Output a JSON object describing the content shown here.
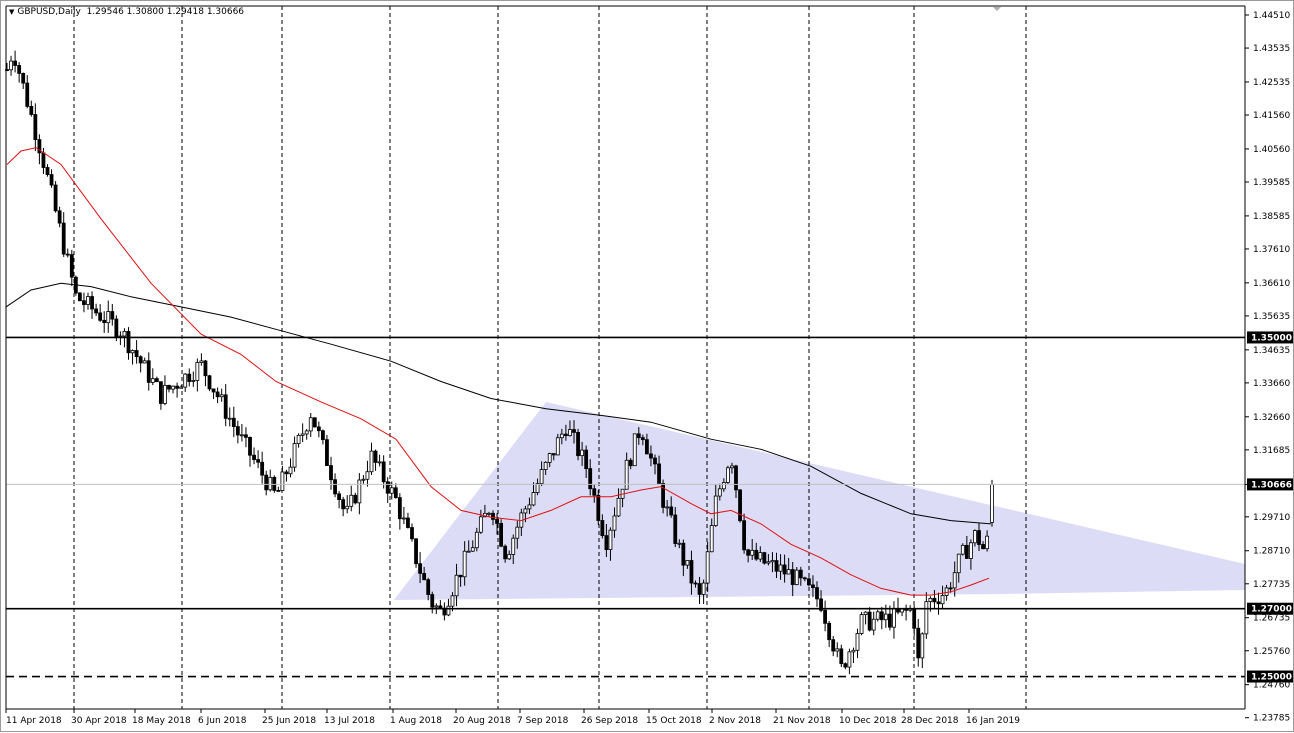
{
  "header": {
    "symbol": "GBPUSD,Daily",
    "ohlc": "1.29546 1.30800 1.29418 1.30666"
  },
  "colors": {
    "background": "#ffffff",
    "candle": "#000000",
    "ma_fast": "#e01010",
    "ma_slow": "#000000",
    "triangle_fill": "#dcdcf6",
    "price_marker_bg": "#000000",
    "price_marker_text": "#ffffff"
  },
  "chart_data": {
    "type": "candlestick",
    "symbol": "GBPUSD",
    "timeframe": "Daily",
    "y_axis_ticks": [
      "1.44510",
      "1.43535",
      "1.42535",
      "1.41560",
      "1.40560",
      "1.39585",
      "1.38585",
      "1.37610",
      "1.36610",
      "1.35635",
      "1.34635",
      "1.33660",
      "1.32660",
      "1.31685",
      "1.30666",
      "1.29710",
      "1.28710",
      "1.27735",
      "1.26735",
      "1.25760",
      "1.24760",
      "1.23785"
    ],
    "x_axis_labels": [
      "11 Apr 2018",
      "30 Apr 2018",
      "18 May 2018",
      "6 Jun 2018",
      "25 Jun 2018",
      "13 Jul 2018",
      "1 Aug 2018",
      "20 Aug 2018",
      "7 Sep 2018",
      "26 Sep 2018",
      "15 Oct 2018",
      "2 Nov 2018",
      "21 Nov 2018",
      "10 Dec 2018",
      "28 Dec 2018",
      "16 Jan 2019"
    ],
    "ylim": [
      1.2365,
      1.4465
    ],
    "horizontal_levels": [
      {
        "value": 1.35,
        "label": "1.35000",
        "style": "solid"
      },
      {
        "value": 1.27,
        "label": "1.27000",
        "style": "solid"
      },
      {
        "value": 1.25,
        "label": "1.25000",
        "style": "dashed"
      }
    ],
    "current_price": {
      "value": 1.30666,
      "label": "1.30666"
    },
    "last_candle": {
      "open": 1.29546,
      "high": 1.308,
      "low": 1.29418,
      "close": 1.30666
    },
    "indicators": [
      "moving average (red)",
      "moving average (black)"
    ],
    "annotations": [
      "triangle pattern (shaded)"
    ]
  }
}
